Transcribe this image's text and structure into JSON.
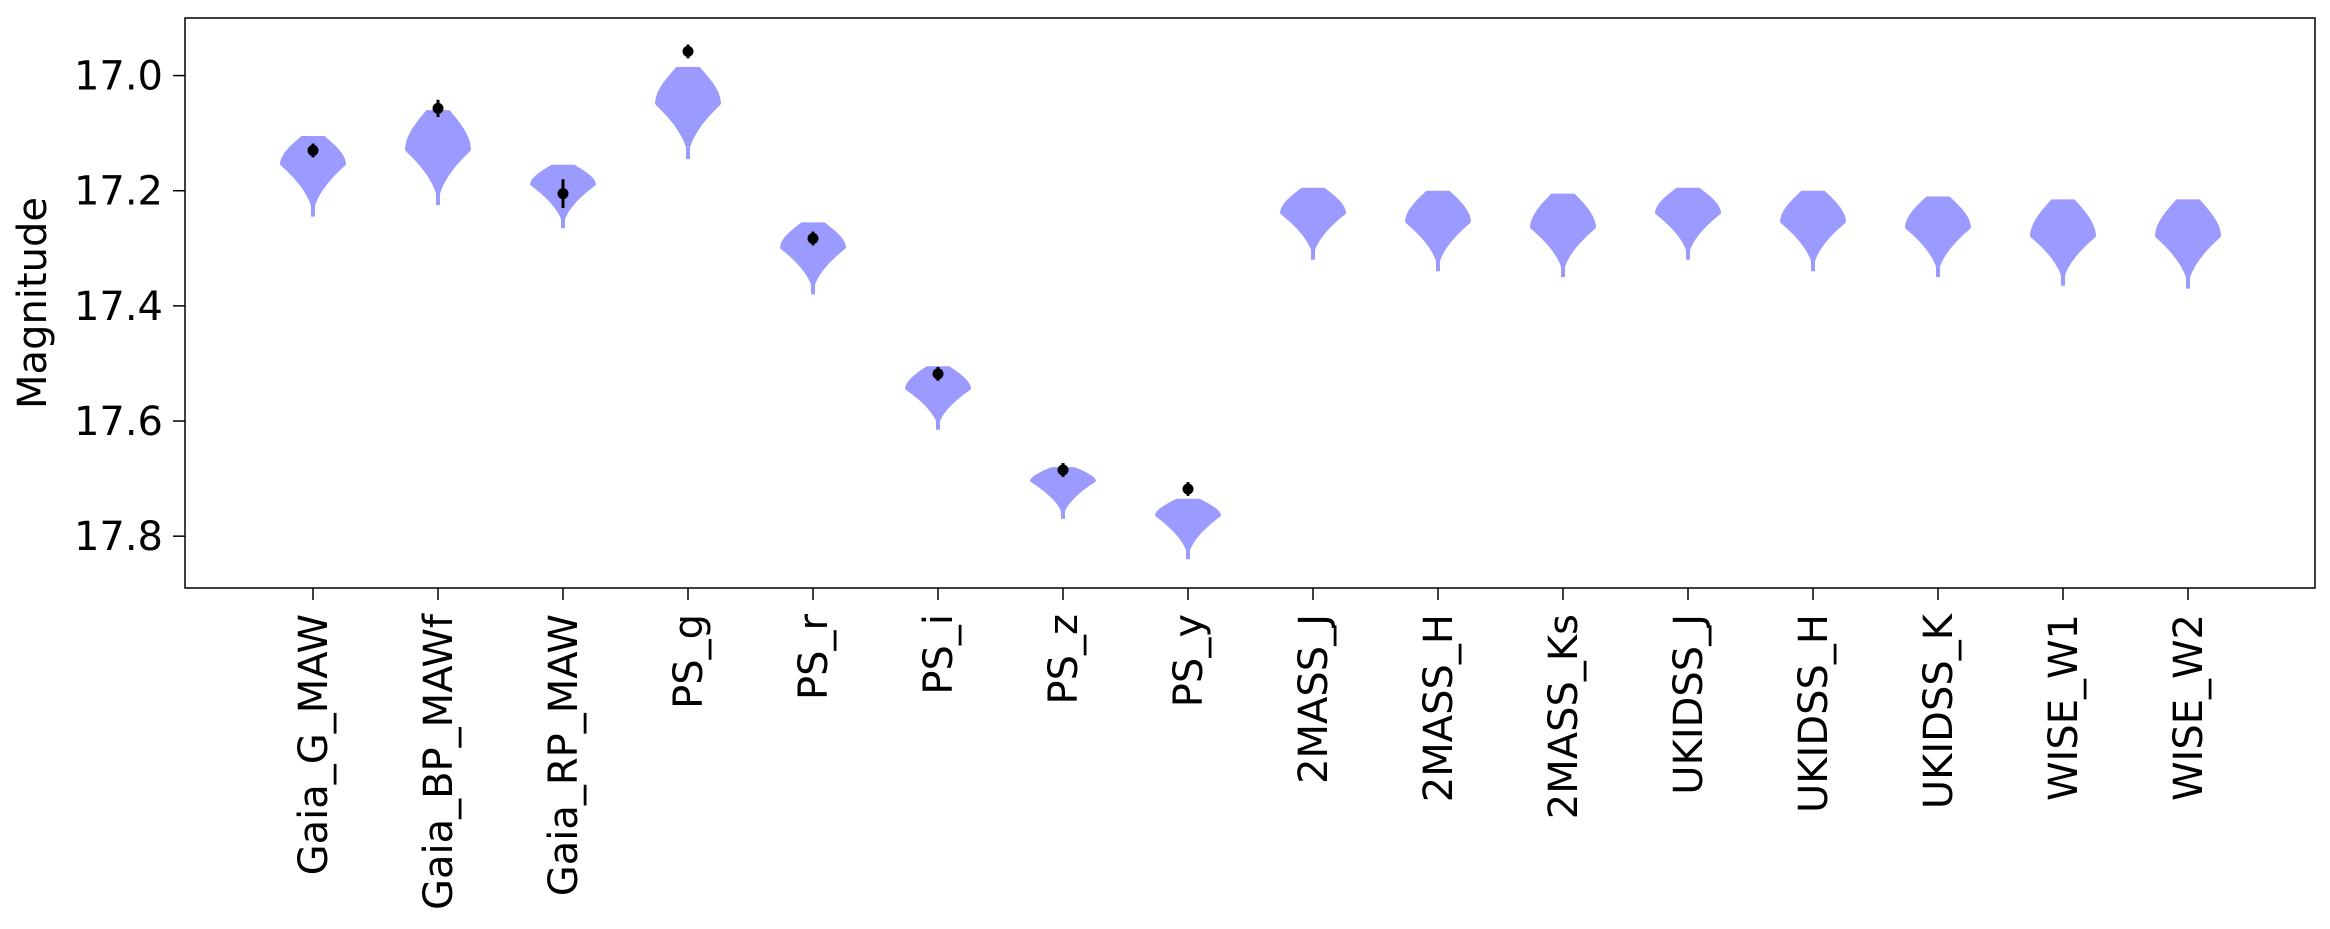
{
  "chart_data": {
    "type": "violin",
    "title": "",
    "xlabel": "",
    "ylabel": "Magnitude",
    "ylim": [
      17.89,
      16.9
    ],
    "y_inverted": true,
    "yticks": [
      17.0,
      17.2,
      17.4,
      17.6,
      17.8
    ],
    "ytick_labels": [
      "17.0",
      "17.2",
      "17.4",
      "17.6",
      "17.8"
    ],
    "grid": false,
    "legend": "none",
    "colors": {
      "violin": "#9b9bff",
      "observation": "#000000",
      "axes": "#000000"
    },
    "categories": [
      "Gaia_G_MAW",
      "Gaia_BP_MAWf",
      "Gaia_RP_MAW",
      "PS_g",
      "PS_r",
      "PS_i",
      "PS_z",
      "PS_y",
      "2MASS_J",
      "2MASS_H",
      "2MASS_Ks",
      "UKIDSS_J",
      "UKIDSS_H",
      "UKIDSS_K",
      "WISE_W1",
      "WISE_W2"
    ],
    "violins": [
      {
        "min": 17.105,
        "max": 17.245,
        "widest": 17.155
      },
      {
        "min": 17.06,
        "max": 17.225,
        "widest": 17.13
      },
      {
        "min": 17.155,
        "max": 17.265,
        "widest": 17.19
      },
      {
        "min": 16.985,
        "max": 17.145,
        "widest": 17.05
      },
      {
        "min": 17.255,
        "max": 17.38,
        "widest": 17.3
      },
      {
        "min": 17.505,
        "max": 17.615,
        "widest": 17.545
      },
      {
        "min": 17.68,
        "max": 17.77,
        "widest": 17.705
      },
      {
        "min": 17.735,
        "max": 17.84,
        "widest": 17.765
      },
      {
        "min": 17.195,
        "max": 17.32,
        "widest": 17.24
      },
      {
        "min": 17.2,
        "max": 17.34,
        "widest": 17.255
      },
      {
        "min": 17.205,
        "max": 17.35,
        "widest": 17.265
      },
      {
        "min": 17.195,
        "max": 17.32,
        "widest": 17.24
      },
      {
        "min": 17.2,
        "max": 17.34,
        "widest": 17.255
      },
      {
        "min": 17.21,
        "max": 17.35,
        "widest": 17.265
      },
      {
        "min": 17.215,
        "max": 17.365,
        "widest": 17.28
      },
      {
        "min": 17.215,
        "max": 17.37,
        "widest": 17.28
      }
    ],
    "observations": [
      {
        "value": 17.13,
        "error": 0.012
      },
      {
        "value": 17.057,
        "error": 0.015
      },
      {
        "value": 17.205,
        "error": 0.025
      },
      {
        "value": 16.958,
        "error": 0.012
      },
      {
        "value": 17.283,
        "error": 0.012
      },
      {
        "value": 17.518,
        "error": 0.012
      },
      {
        "value": 17.685,
        "error": 0.012
      },
      {
        "value": 17.718,
        "error": 0.012
      },
      null,
      null,
      null,
      null,
      null,
      null,
      null,
      null
    ]
  }
}
